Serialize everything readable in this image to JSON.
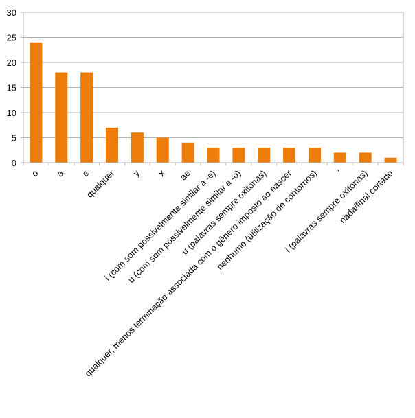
{
  "chart_data": {
    "type": "bar",
    "title": "",
    "xlabel": "",
    "ylabel": "",
    "ylim": [
      0,
      30
    ],
    "yticks": [
      0,
      5,
      10,
      15,
      20,
      25,
      30
    ],
    "grid": true,
    "legend": "none",
    "bar_color": "#ED7D0A",
    "categories": [
      "o",
      "a",
      "e",
      "qualquer",
      "y",
      "x",
      "ae",
      "i (com som possivelmente similar a -e)",
      "u (com som possivelmente similar a -o)",
      "u (palavras sempre oxitonas)",
      "qualquer, menos terminação associada com o gênero imposto ao nascer",
      "nenhume (utilização de contornos)",
      "'",
      "i (palavras sempre oxitonas)",
      "nada/final cortado"
    ],
    "values": [
      24,
      18,
      18,
      7,
      6,
      5,
      4,
      3,
      3,
      3,
      3,
      3,
      2,
      2,
      1
    ]
  }
}
